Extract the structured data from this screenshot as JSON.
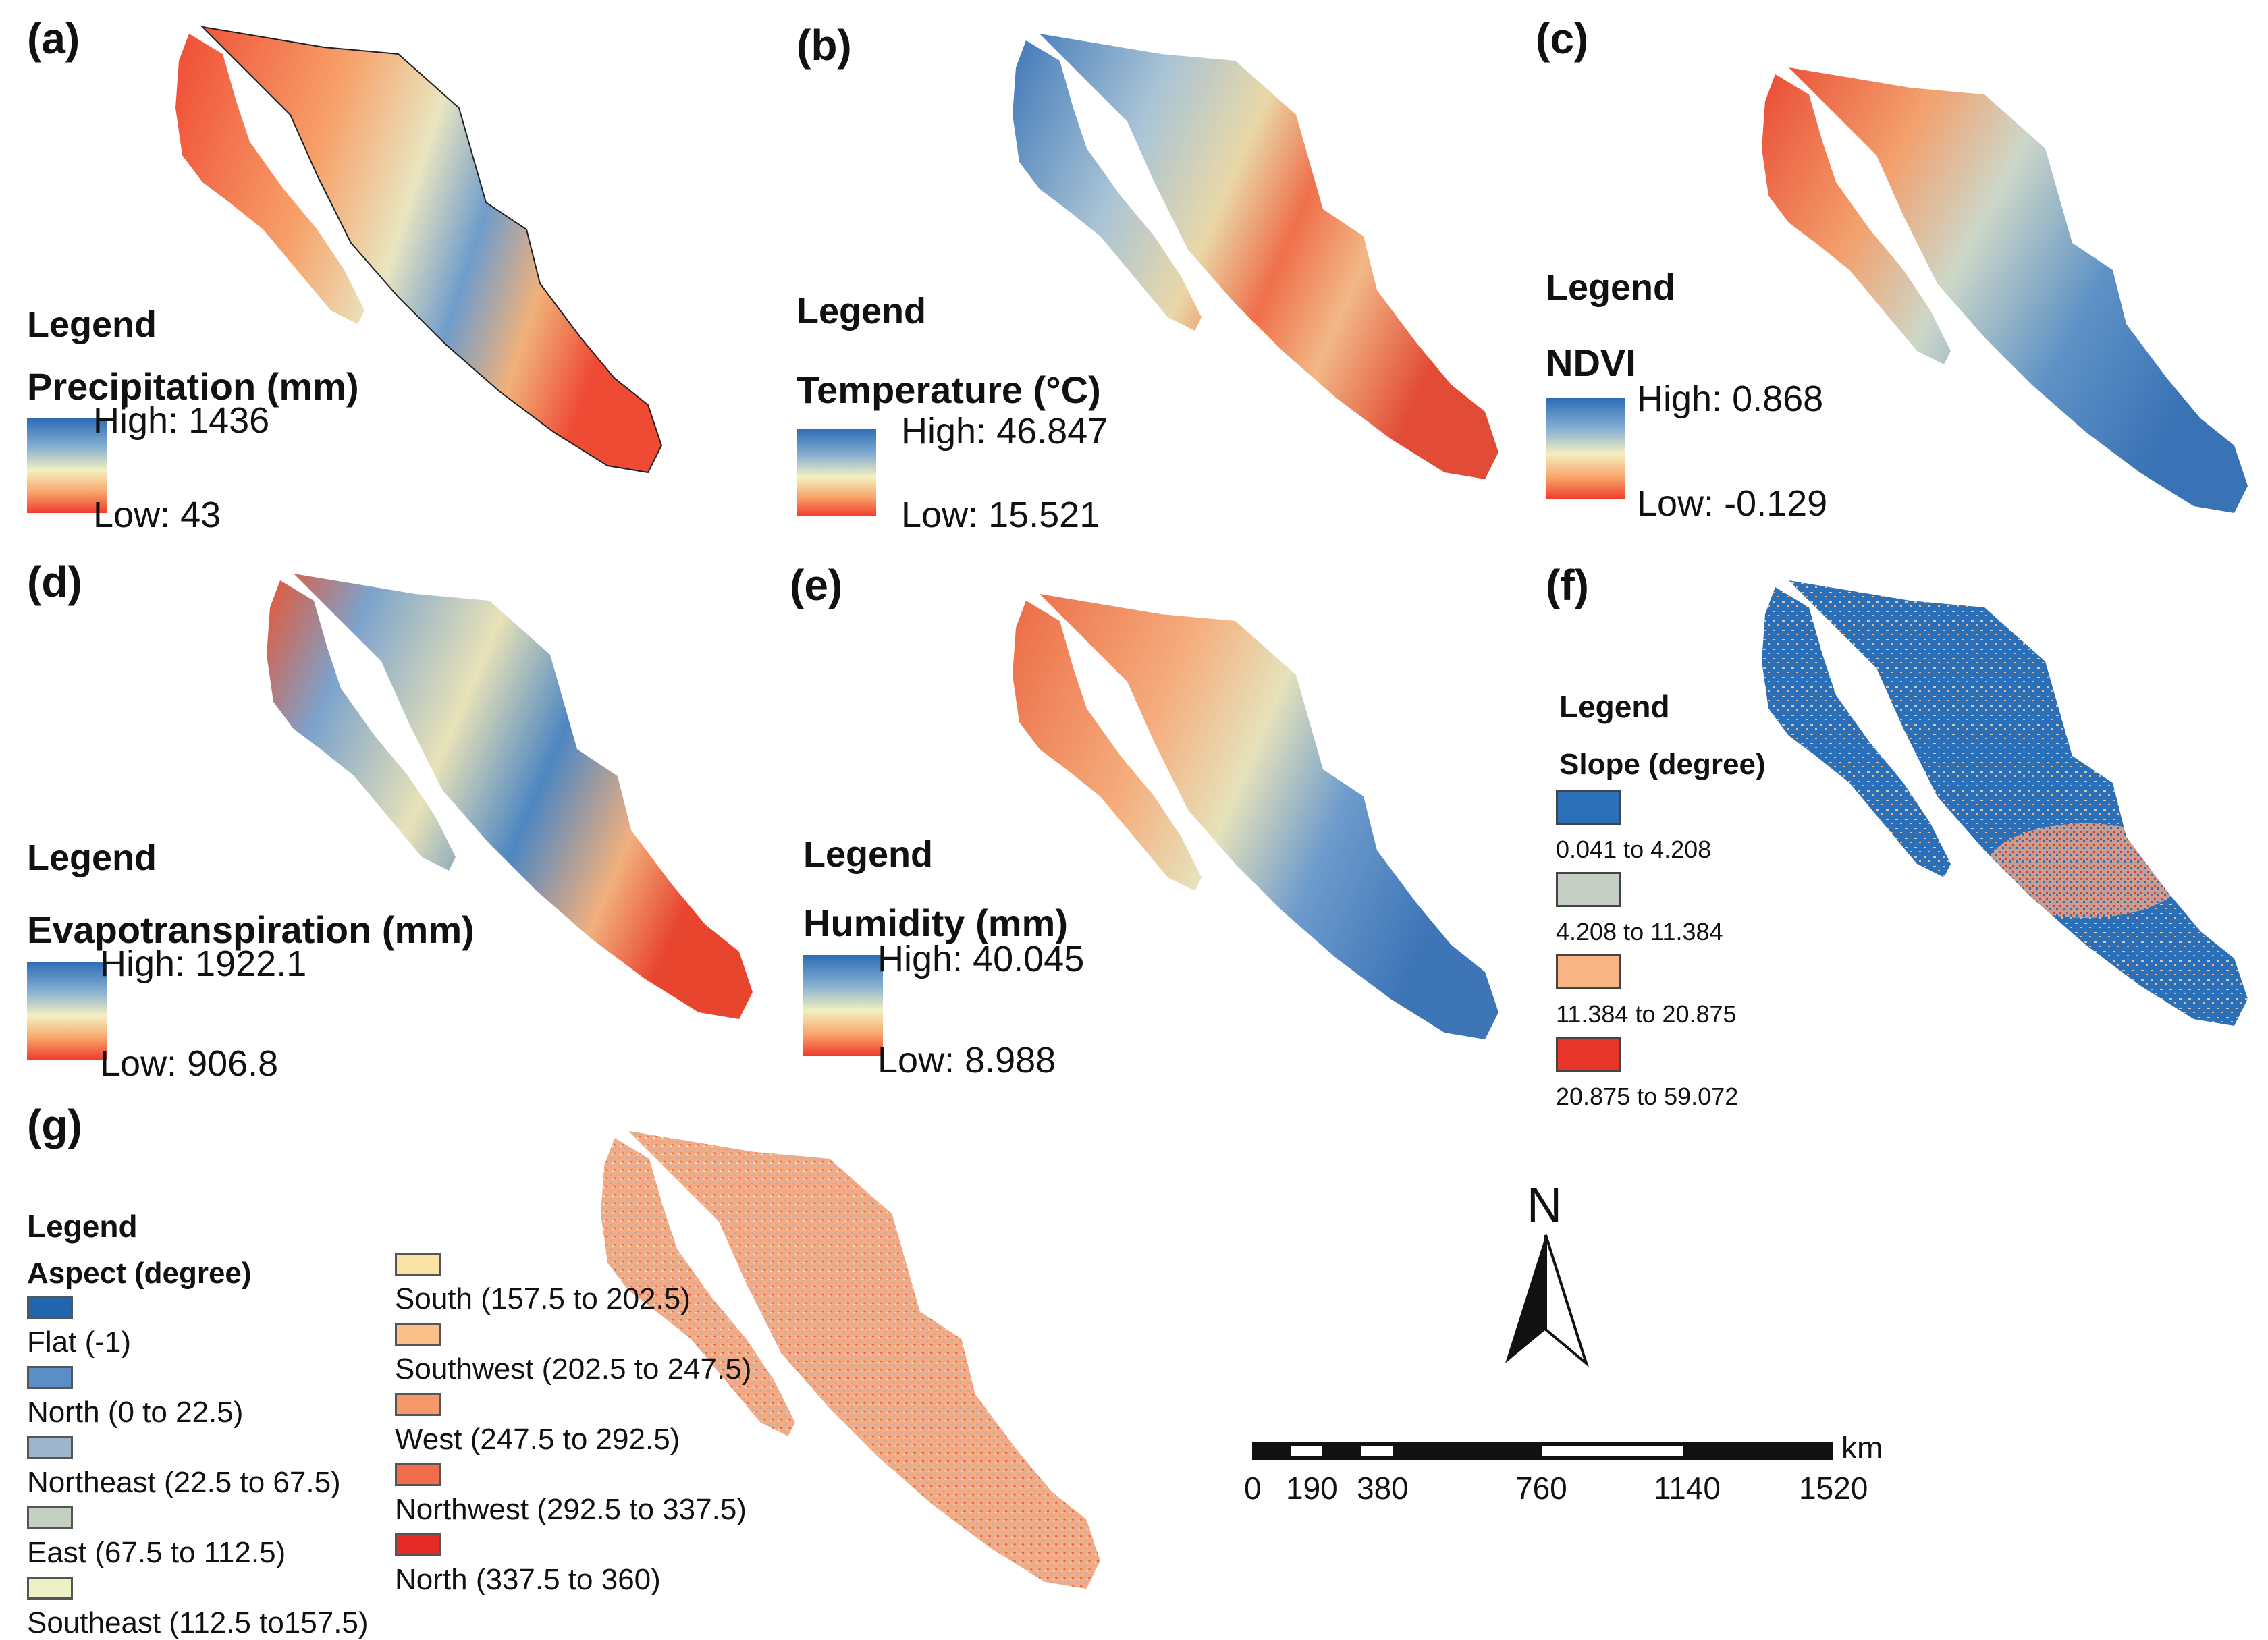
{
  "panels": [
    {
      "id": "a",
      "label": "(a)",
      "legend_title": "Legend",
      "variable": "Precipitation (mm)",
      "high": "High: 1436",
      "low": "Low: 43",
      "scheme": "precip"
    },
    {
      "id": "b",
      "label": "(b)",
      "legend_title": "Legend",
      "variable": "Temperature (°C)",
      "high": "High: 46.847",
      "low": "Low: 15.521",
      "scheme": "temp"
    },
    {
      "id": "c",
      "label": "(c)",
      "legend_title": "Legend",
      "variable": "NDVI",
      "high": "High: 0.868",
      "low": "Low: -0.129",
      "scheme": "ndvi"
    },
    {
      "id": "d",
      "label": "(d)",
      "legend_title": "Legend",
      "variable": "Evapotranspiration (mm)",
      "high": "High: 1922.1",
      "low": "Low: 906.8",
      "scheme": "et"
    },
    {
      "id": "e",
      "label": "(e)",
      "legend_title": "Legend",
      "variable": "Humidity (mm)",
      "high": "High: 40.045",
      "low": "Low: 8.988",
      "scheme": "hum"
    }
  ],
  "slope": {
    "label": "(f)",
    "legend_title": "Legend",
    "variable": "Slope (degree)",
    "classes": [
      {
        "range": "0.041 to 4.208",
        "color": "#2a6fb8"
      },
      {
        "range": "4.208 to 11.384",
        "color": "#c5cfc6"
      },
      {
        "range": "11.384 to 20.875",
        "color": "#f9b483"
      },
      {
        "range": "20.875 to 59.072",
        "color": "#e8352a"
      }
    ]
  },
  "aspect": {
    "label": "(g)",
    "legend_title": "Legend",
    "variable": "Aspect (degree)",
    "classes": [
      {
        "name": "Flat (-1)",
        "color": "#2165ad"
      },
      {
        "name": "North (0 to 22.5)",
        "color": "#5b8ec4"
      },
      {
        "name": "Northeast (22.5 to 67.5)",
        "color": "#9eb6cc"
      },
      {
        "name": "East (67.5 to 112.5)",
        "color": "#c6d0c2"
      },
      {
        "name": "Southeast (112.5 to157.5)",
        "color": "#eef0c6"
      },
      {
        "name": "South (157.5 to 202.5)",
        "color": "#fbe3a6"
      },
      {
        "name": "Southwest (202.5 to 247.5)",
        "color": "#fbbf8a"
      },
      {
        "name": "West (247.5 to 292.5)",
        "color": "#f6996a"
      },
      {
        "name": "Northwest (292.5 to 337.5)",
        "color": "#f06c4b"
      },
      {
        "name": "North (337.5 to 360)",
        "color": "#e52b25"
      }
    ]
  },
  "north_arrow": {
    "letter": "N"
  },
  "scale_bar": {
    "unit": "km",
    "ticks": [
      "0",
      "190",
      "380",
      "760",
      "1140",
      "1520"
    ]
  }
}
